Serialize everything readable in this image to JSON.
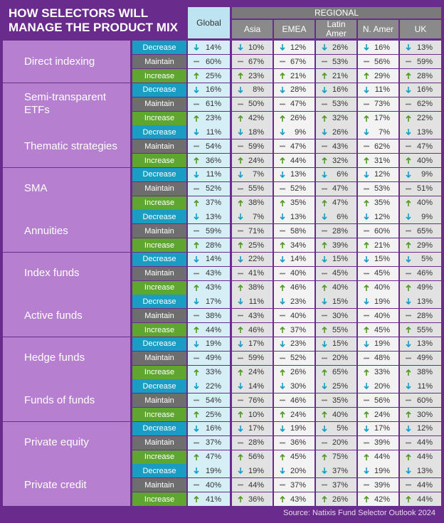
{
  "title": [
    "HOW SELECTORS WILL",
    "MANAGE THE PRODUCT MIX"
  ],
  "header": {
    "global": "Global",
    "regional": "REGIONAL",
    "regions": [
      "Asia",
      "EMEA",
      "Latin Amer",
      "N. Amer",
      "UK"
    ]
  },
  "row_labels": [
    "Decrease",
    "Maintain",
    "Increase"
  ],
  "groups": [
    {
      "name": "Direct indexing",
      "rows": [
        [
          "14%",
          "10%",
          "12%",
          "26%",
          "16%",
          "13%"
        ],
        [
          "60%",
          "67%",
          "67%",
          "53%",
          "56%",
          "59%"
        ],
        [
          "25%",
          "23%",
          "21%",
          "21%",
          "29%",
          "28%"
        ]
      ]
    },
    {
      "name": "Semi-transparent ETFs",
      "rows": [
        [
          "16%",
          "8%",
          "28%",
          "16%",
          "11%",
          "16%"
        ],
        [
          "61%",
          "50%",
          "47%",
          "53%",
          "73%",
          "62%"
        ],
        [
          "23%",
          "42%",
          "26%",
          "32%",
          "17%",
          "22%"
        ]
      ]
    },
    {
      "name": "Thematic strategies",
      "rows": [
        [
          "11%",
          "18%",
          "9%",
          "26%",
          "7%",
          "13%"
        ],
        [
          "54%",
          "59%",
          "47%",
          "43%",
          "62%",
          "47%"
        ],
        [
          "36%",
          "24%",
          "44%",
          "32%",
          "31%",
          "40%"
        ]
      ]
    },
    {
      "name": "SMA",
      "rows": [
        [
          "11%",
          "7%",
          "13%",
          "6%",
          "12%",
          "9%"
        ],
        [
          "52%",
          "55%",
          "52%",
          "47%",
          "53%",
          "51%"
        ],
        [
          "37%",
          "38%",
          "35%",
          "47%",
          "35%",
          "40%"
        ]
      ]
    },
    {
      "name": "Annuities",
      "rows": [
        [
          "13%",
          "7%",
          "13%",
          "6%",
          "12%",
          "9%"
        ],
        [
          "59%",
          "71%",
          "58%",
          "28%",
          "60%",
          "65%"
        ],
        [
          "28%",
          "25%",
          "34%",
          "39%",
          "21%",
          "29%"
        ]
      ]
    },
    {
      "name": "Index funds",
      "rows": [
        [
          "14%",
          "22%",
          "14%",
          "15%",
          "15%",
          "5%"
        ],
        [
          "43%",
          "41%",
          "40%",
          "45%",
          "45%",
          "46%"
        ],
        [
          "43%",
          "38%",
          "46%",
          "40%",
          "40%",
          "49%"
        ]
      ]
    },
    {
      "name": "Active funds",
      "rows": [
        [
          "17%",
          "11%",
          "23%",
          "15%",
          "19%",
          "13%"
        ],
        [
          "38%",
          "43%",
          "40%",
          "30%",
          "40%",
          "28%"
        ],
        [
          "44%",
          "46%",
          "37%",
          "55%",
          "45%",
          "55%"
        ]
      ]
    },
    {
      "name": "Hedge funds",
      "rows": [
        [
          "19%",
          "17%",
          "23%",
          "15%",
          "19%",
          "13%"
        ],
        [
          "49%",
          "59%",
          "52%",
          "20%",
          "48%",
          "49%"
        ],
        [
          "33%",
          "24%",
          "26%",
          "65%",
          "33%",
          "38%"
        ]
      ]
    },
    {
      "name": "Funds of funds",
      "rows": [
        [
          "22%",
          "14%",
          "30%",
          "25%",
          "20%",
          "11%"
        ],
        [
          "54%",
          "76%",
          "46%",
          "35%",
          "56%",
          "60%"
        ],
        [
          "25%",
          "10%",
          "24%",
          "40%",
          "24%",
          "30%"
        ]
      ]
    },
    {
      "name": "Private equity",
      "rows": [
        [
          "16%",
          "17%",
          "19%",
          "5%",
          "17%",
          "12%"
        ],
        [
          "37%",
          "28%",
          "36%",
          "20%",
          "39%",
          "44%"
        ],
        [
          "47%",
          "56%",
          "45%",
          "75%",
          "44%",
          "44%"
        ]
      ]
    },
    {
      "name": "Private credit",
      "rows": [
        [
          "19%",
          "19%",
          "20%",
          "37%",
          "19%",
          "13%"
        ],
        [
          "40%",
          "44%",
          "37%",
          "37%",
          "39%",
          "44%"
        ],
        [
          "41%",
          "36%",
          "43%",
          "26%",
          "42%",
          "44%"
        ]
      ]
    }
  ],
  "source": "Source: Natixis Fund Selector Outlook 2024"
}
